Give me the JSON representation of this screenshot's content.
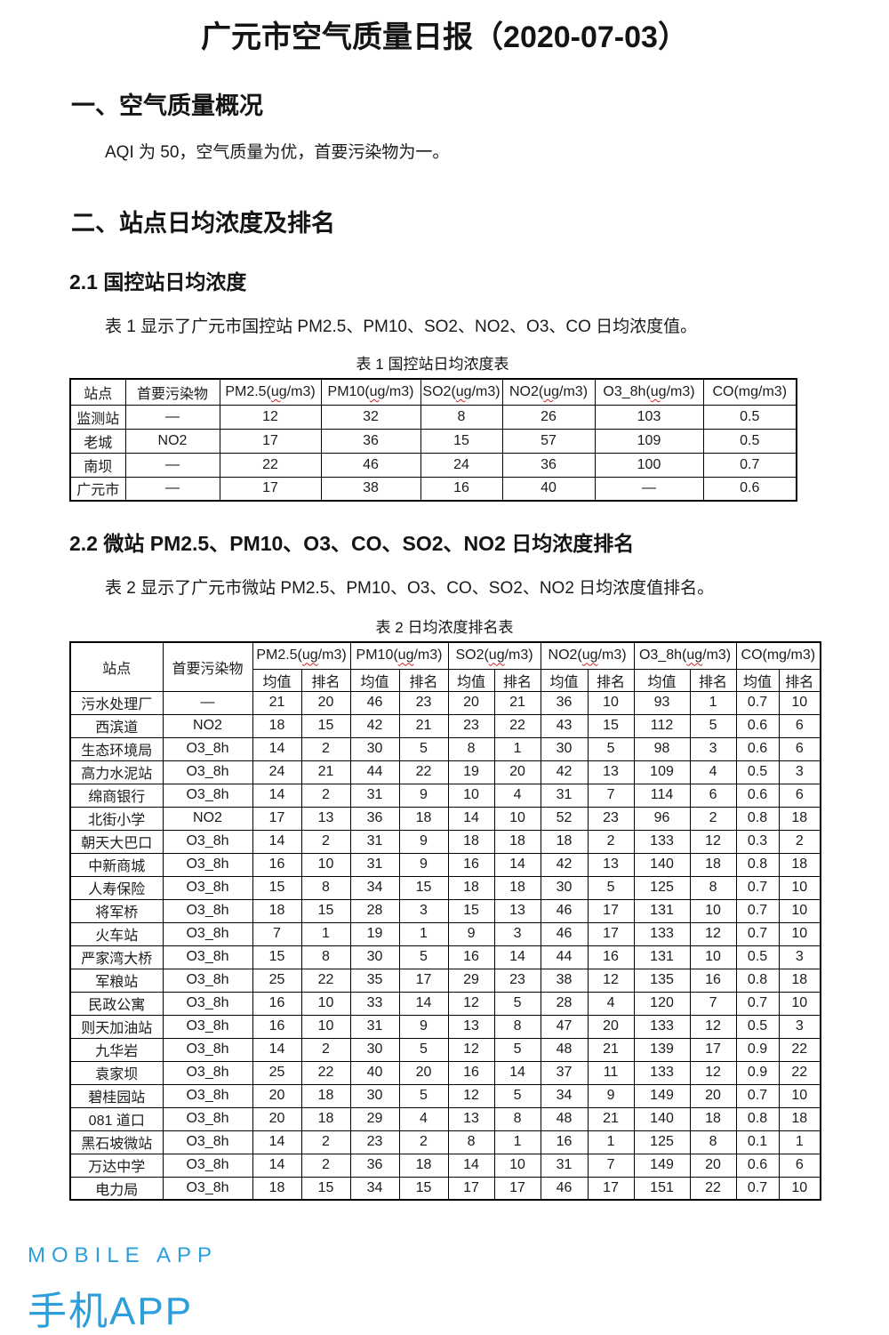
{
  "page": {
    "title": "广元市空气质量日报（2020-07-03）"
  },
  "sections": {
    "s1_heading": "一、空气质量概况",
    "s1_body": "AQI 为 50，空气质量为优，首要污染物为一。",
    "s2_heading": "二、站点日均浓度及排名",
    "s21_heading": "2.1 国控站日均浓度",
    "s21_body": "表 1 显示了广元市国控站 PM2.5、PM10、SO2、NO2、O3、CO 日均浓度值。",
    "s22_heading": "2.2 微站 PM2.5、PM10、O3、CO、SO2、NO2 日均浓度排名",
    "s22_body": "表 2 显示了广元市微站 PM2.5、PM10、O3、CO、SO2、NO2 日均浓度值排名。"
  },
  "table1": {
    "caption": "表 1 国控站日均浓度表",
    "headers": [
      "站点",
      "首要污染物",
      "PM2.5(ug/m3)",
      "PM10(ug/m3)",
      "SO2(ug/m3)",
      "NO2(ug/m3)",
      "O3_8h(ug/m3)",
      "CO(mg/m3)"
    ],
    "rows": [
      [
        "监测站",
        "—",
        "12",
        "32",
        "8",
        "26",
        "103",
        "0.5"
      ],
      [
        "老城",
        "NO2",
        "17",
        "36",
        "15",
        "57",
        "109",
        "0.5"
      ],
      [
        "南坝",
        "—",
        "22",
        "46",
        "24",
        "36",
        "100",
        "0.7"
      ],
      [
        "广元市",
        "—",
        "17",
        "38",
        "16",
        "40",
        "—",
        "0.6"
      ]
    ]
  },
  "table2": {
    "caption": "表 2 日均浓度排名表",
    "station_header": "站点",
    "pollutant_col_header": "首要污染物",
    "pollutant_headers": [
      "PM2.5(ug/m3)",
      "PM10(ug/m3)",
      "SO2(ug/m3)",
      "NO2(ug/m3)",
      "O3_8h(ug/m3)",
      "CO(mg/m3)"
    ],
    "sub_headers": [
      "均值",
      "排名"
    ],
    "rows": [
      [
        "污水处理厂",
        "—",
        "21",
        "20",
        "46",
        "23",
        "20",
        "21",
        "36",
        "10",
        "93",
        "1",
        "0.7",
        "10"
      ],
      [
        "西滨道",
        "NO2",
        "18",
        "15",
        "42",
        "21",
        "23",
        "22",
        "43",
        "15",
        "112",
        "5",
        "0.6",
        "6"
      ],
      [
        "生态环境局",
        "O3_8h",
        "14",
        "2",
        "30",
        "5",
        "8",
        "1",
        "30",
        "5",
        "98",
        "3",
        "0.6",
        "6"
      ],
      [
        "高力水泥站",
        "O3_8h",
        "24",
        "21",
        "44",
        "22",
        "19",
        "20",
        "42",
        "13",
        "109",
        "4",
        "0.5",
        "3"
      ],
      [
        "绵商银行",
        "O3_8h",
        "14",
        "2",
        "31",
        "9",
        "10",
        "4",
        "31",
        "7",
        "114",
        "6",
        "0.6",
        "6"
      ],
      [
        "北街小学",
        "NO2",
        "17",
        "13",
        "36",
        "18",
        "14",
        "10",
        "52",
        "23",
        "96",
        "2",
        "0.8",
        "18"
      ],
      [
        "朝天大巴口",
        "O3_8h",
        "14",
        "2",
        "31",
        "9",
        "18",
        "18",
        "18",
        "2",
        "133",
        "12",
        "0.3",
        "2"
      ],
      [
        "中新商城",
        "O3_8h",
        "16",
        "10",
        "31",
        "9",
        "16",
        "14",
        "42",
        "13",
        "140",
        "18",
        "0.8",
        "18"
      ],
      [
        "人寿保险",
        "O3_8h",
        "15",
        "8",
        "34",
        "15",
        "18",
        "18",
        "30",
        "5",
        "125",
        "8",
        "0.7",
        "10"
      ],
      [
        "将军桥",
        "O3_8h",
        "18",
        "15",
        "28",
        "3",
        "15",
        "13",
        "46",
        "17",
        "131",
        "10",
        "0.7",
        "10"
      ],
      [
        "火车站",
        "O3_8h",
        "7",
        "1",
        "19",
        "1",
        "9",
        "3",
        "46",
        "17",
        "133",
        "12",
        "0.7",
        "10"
      ],
      [
        "严家湾大桥",
        "O3_8h",
        "15",
        "8",
        "30",
        "5",
        "16",
        "14",
        "44",
        "16",
        "131",
        "10",
        "0.5",
        "3"
      ],
      [
        "军粮站",
        "O3_8h",
        "25",
        "22",
        "35",
        "17",
        "29",
        "23",
        "38",
        "12",
        "135",
        "16",
        "0.8",
        "18"
      ],
      [
        "民政公寓",
        "O3_8h",
        "16",
        "10",
        "33",
        "14",
        "12",
        "5",
        "28",
        "4",
        "120",
        "7",
        "0.7",
        "10"
      ],
      [
        "则天加油站",
        "O3_8h",
        "16",
        "10",
        "31",
        "9",
        "13",
        "8",
        "47",
        "20",
        "133",
        "12",
        "0.5",
        "3"
      ],
      [
        "九华岩",
        "O3_8h",
        "14",
        "2",
        "30",
        "5",
        "12",
        "5",
        "48",
        "21",
        "139",
        "17",
        "0.9",
        "22"
      ],
      [
        "袁家坝",
        "O3_8h",
        "25",
        "22",
        "40",
        "20",
        "16",
        "14",
        "37",
        "11",
        "133",
        "12",
        "0.9",
        "22"
      ],
      [
        "碧桂园站",
        "O3_8h",
        "20",
        "18",
        "30",
        "5",
        "12",
        "5",
        "34",
        "9",
        "149",
        "20",
        "0.7",
        "10"
      ],
      [
        "081 道口",
        "O3_8h",
        "20",
        "18",
        "29",
        "4",
        "13",
        "8",
        "48",
        "21",
        "140",
        "18",
        "0.8",
        "18"
      ],
      [
        "黑石坡微站",
        "O3_8h",
        "14",
        "2",
        "23",
        "2",
        "8",
        "1",
        "16",
        "1",
        "125",
        "8",
        "0.1",
        "1"
      ],
      [
        "万达中学",
        "O3_8h",
        "14",
        "2",
        "36",
        "18",
        "14",
        "10",
        "31",
        "7",
        "149",
        "20",
        "0.6",
        "6"
      ],
      [
        "电力局",
        "O3_8h",
        "18",
        "15",
        "34",
        "15",
        "17",
        "17",
        "46",
        "17",
        "151",
        "22",
        "0.7",
        "10"
      ]
    ]
  },
  "footer": {
    "line_en": "MOBILE APP",
    "line_cn": "手机APP",
    "accent_color": "#2b9edb"
  }
}
